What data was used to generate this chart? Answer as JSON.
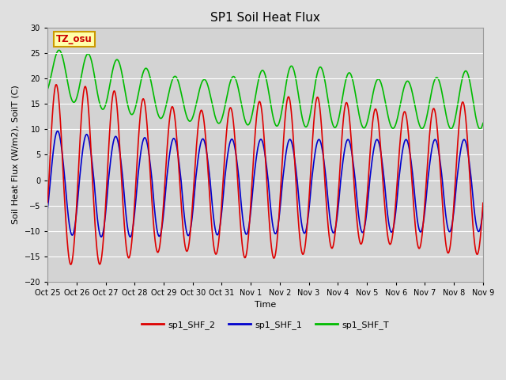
{
  "title": "SP1 Soil Heat Flux",
  "xlabel": "Time",
  "ylabel": "Soil Heat Flux (W/m2), SoilT (C)",
  "ylim": [
    -20,
    30
  ],
  "fig_bg": "#e0e0e0",
  "plot_bg": "#d3d3d3",
  "grid_color": "#ffffff",
  "line_colors": {
    "sp1_SHF_2": "#dd0000",
    "sp1_SHF_1": "#0000cc",
    "sp1_SHF_T": "#00bb00"
  },
  "annotation_text": "TZ_osu",
  "annotation_bg": "#ffffaa",
  "annotation_border": "#cc9900",
  "annotation_text_color": "#cc0000",
  "yticks": [
    -20,
    -15,
    -10,
    -5,
    0,
    5,
    10,
    15,
    20,
    25,
    30
  ],
  "xtick_labels": [
    "Oct 25",
    "Oct 26",
    "Oct 27",
    "Oct 28",
    "Oct 29",
    "Oct 30",
    "Oct 31",
    "Nov 1",
    "Nov 2",
    "Nov 3",
    "Nov 4",
    "Nov 5",
    "Nov 6",
    "Nov 7",
    "Nov 8",
    "Nov 9"
  ],
  "legend_entries": [
    "sp1_SHF_2",
    "sp1_SHF_1",
    "sp1_SHF_T"
  ],
  "title_fontsize": 11,
  "axis_fontsize": 8,
  "tick_fontsize": 7,
  "legend_fontsize": 8
}
